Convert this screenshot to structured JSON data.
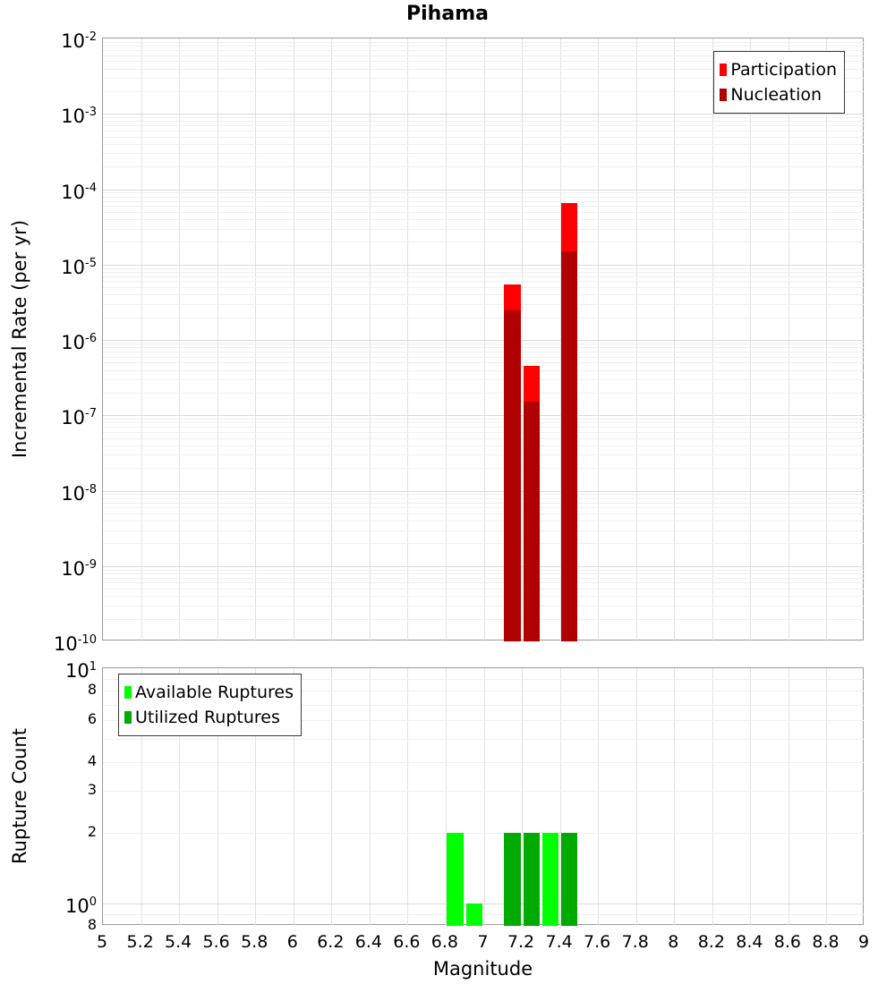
{
  "title": "Pihama",
  "xlabel": "Magnitude",
  "colors": {
    "participation": "#ff0000",
    "nucleation": "#b00000",
    "available": "#00ff00",
    "utilized": "#00aa00",
    "axis_border": "#9a9a9a",
    "grid_major": "#dadada",
    "grid_minor": "#efefef",
    "grid_vertical": "#e2e2e2",
    "background": "#ffffff",
    "text": "#000000"
  },
  "chart_data": [
    {
      "name": "incremental-rate",
      "type": "bar",
      "title": "Pihama",
      "xlabel": "",
      "ylabel": "Incremental Rate (per yr)",
      "yscale": "log",
      "xscale": "linear",
      "xlim": [
        5,
        9
      ],
      "ylim": [
        1e-10,
        0.01
      ],
      "x_tick_step": 0.2,
      "grid": true,
      "bin_width": 0.1,
      "show_x_labels": false,
      "x_tick_labels": [
        "5",
        "5.2",
        "5.4",
        "5.6",
        "5.8",
        "6",
        "6.2",
        "6.4",
        "6.6",
        "6.8",
        "7",
        "7.2",
        "7.4",
        "7.6",
        "7.8",
        "8",
        "8.2",
        "8.4",
        "8.6",
        "8.8",
        "9"
      ],
      "y_major_ticks": [
        {
          "v": 0.01,
          "exp": "-2"
        },
        {
          "v": 0.001,
          "exp": "-3"
        },
        {
          "v": 0.0001,
          "exp": "-4"
        },
        {
          "v": 1e-05,
          "exp": "-5"
        },
        {
          "v": 1e-06,
          "exp": "-6"
        },
        {
          "v": 1e-07,
          "exp": "-7"
        },
        {
          "v": 1e-08,
          "exp": "-8"
        },
        {
          "v": 1e-09,
          "exp": "-9"
        },
        {
          "v": 1e-10,
          "exp": "-10"
        }
      ],
      "y_minor_labels": [],
      "legend": {
        "position": "top-right",
        "entries": [
          {
            "label": "Participation",
            "color": "#ff0000"
          },
          {
            "label": "Nucleation",
            "color": "#b00000"
          }
        ]
      },
      "series": [
        {
          "name": "Participation",
          "color": "#ff0000",
          "bins": [
            7.15,
            7.25,
            7.45
          ],
          "values": [
            5.5e-06,
            4.5e-07,
            6.5e-05
          ]
        },
        {
          "name": "Nucleation",
          "color": "#b00000",
          "bins": [
            7.15,
            7.25,
            7.45
          ],
          "values": [
            2.5e-06,
            1.5e-07,
            1.5e-05
          ]
        }
      ]
    },
    {
      "name": "rupture-count",
      "type": "bar",
      "title": "",
      "xlabel": "Magnitude",
      "ylabel": "Rupture Count",
      "yscale": "log",
      "xscale": "linear",
      "xlim": [
        5,
        9
      ],
      "ylim": [
        0.8,
        10
      ],
      "x_tick_step": 0.2,
      "grid": true,
      "bin_width": 0.1,
      "show_x_labels": true,
      "x_tick_labels": [
        "5",
        "5.2",
        "5.4",
        "5.6",
        "5.8",
        "6",
        "6.2",
        "6.4",
        "6.6",
        "6.8",
        "7",
        "7.2",
        "7.4",
        "7.6",
        "7.8",
        "8",
        "8.2",
        "8.4",
        "8.6",
        "8.8",
        "9"
      ],
      "y_major_ticks": [
        {
          "v": 10,
          "exp": "1"
        },
        {
          "v": 1,
          "exp": "0"
        }
      ],
      "y_minor_labels": [
        {
          "v": 8,
          "label": "8"
        },
        {
          "v": 6,
          "label": "6"
        },
        {
          "v": 4,
          "label": "4"
        },
        {
          "v": 3,
          "label": "3"
        },
        {
          "v": 2,
          "label": "2"
        },
        {
          "v": 0.8,
          "label": "8"
        }
      ],
      "legend": {
        "position": "top-left",
        "entries": [
          {
            "label": "Available Ruptures",
            "color": "#00ff00"
          },
          {
            "label": "Utilized Ruptures",
            "color": "#00aa00"
          }
        ]
      },
      "series": [
        {
          "name": "Available Ruptures",
          "color": "#00ff00",
          "bins": [
            6.85,
            6.95,
            7.15,
            7.25,
            7.35,
            7.45
          ],
          "values": [
            2,
            1,
            2,
            2,
            2,
            2
          ]
        },
        {
          "name": "Utilized Ruptures",
          "color": "#00aa00",
          "bins": [
            7.15,
            7.25,
            7.45
          ],
          "values": [
            2,
            2,
            2
          ]
        }
      ]
    }
  ]
}
